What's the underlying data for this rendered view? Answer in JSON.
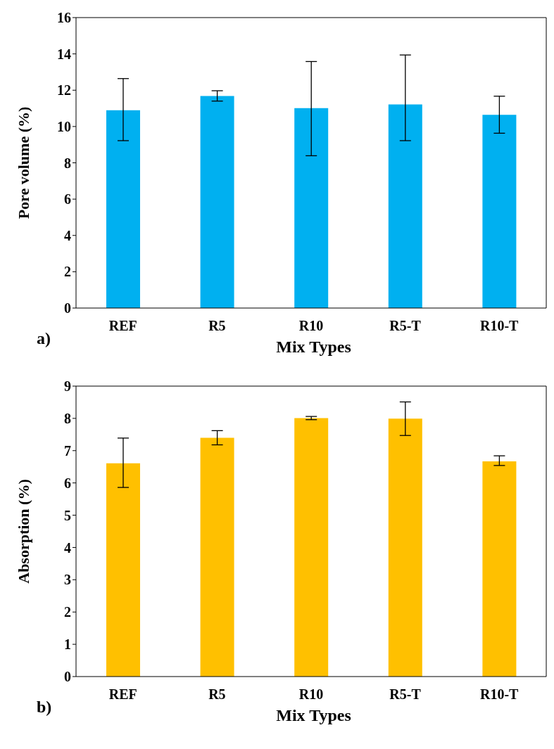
{
  "chart_data": [
    {
      "type": "bar",
      "ylabel": "Pore volume (%)",
      "xlabel": "Mix Types",
      "annotations": [
        "a)"
      ],
      "categories": [
        "REF",
        "R5",
        "R10",
        "R5-T",
        "R10-T"
      ],
      "color": "#00b0f0",
      "values": [
        10.9,
        11.68,
        11.01,
        11.22,
        10.64
      ],
      "errors": [
        [
          9.22,
          12.64
        ],
        [
          11.4,
          11.97
        ],
        [
          8.39,
          13.58
        ],
        [
          9.22,
          13.94
        ],
        [
          9.63,
          11.67
        ]
      ],
      "ylim": [
        0,
        16
      ],
      "yticks": [
        0,
        2,
        4,
        6,
        8,
        10,
        12,
        14,
        16
      ],
      "grid": false
    },
    {
      "type": "bar",
      "ylabel": "Absorption (%)",
      "xlabel": "Mix Types",
      "annotations": [
        "b)"
      ],
      "categories": [
        "REF",
        "R5",
        "R10",
        "R5-T",
        "R10-T"
      ],
      "color": "#ffc000",
      "values": [
        6.61,
        7.4,
        8.01,
        7.99,
        6.67
      ],
      "errors": [
        [
          5.86,
          7.39
        ],
        [
          7.18,
          7.62
        ],
        [
          7.96,
          8.06
        ],
        [
          7.47,
          8.51
        ],
        [
          6.54,
          6.84
        ]
      ],
      "ylim": [
        0,
        9
      ],
      "yticks": [
        0,
        1,
        2,
        3,
        4,
        5,
        6,
        7,
        8,
        9
      ],
      "grid": false
    }
  ]
}
